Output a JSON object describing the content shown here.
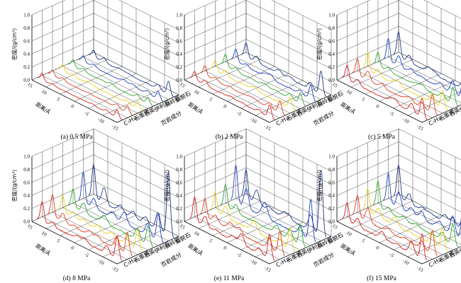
{
  "chart_data": {
    "type": "line",
    "ylabel": "密度/(g/cm³)",
    "xlabel": "距离/Å",
    "zlabel": "页岩成分",
    "ylim": [
      0,
      1.0
    ],
    "y_ticks": [
      "0.0",
      "0.2",
      "0.4",
      "0.6",
      "0.8",
      "1.0"
    ],
    "x_ticks": [
      "15",
      "10",
      "5",
      "0",
      "-5",
      "-10",
      "-15"
    ],
    "components": [
      "C₇H₁₆",
      "石墨烯",
      "石英",
      "伊利石",
      "高岭石",
      "蒙脱石"
    ],
    "series_colors": [
      "#d62020",
      "#e04020",
      "#e8d420",
      "#2ea82e",
      "#2040c0",
      "#203888"
    ],
    "panels": [
      {
        "caption": "(a) 0.5 MPa",
        "peak_scale": 0.12
      },
      {
        "caption": "(b) 2 MPa",
        "peak_scale": 0.3
      },
      {
        "caption": "(c) 5 MPa",
        "peak_scale": 0.55
      },
      {
        "caption": "(d) 8 MPa",
        "peak_scale": 0.7
      },
      {
        "caption": "(e) 11 MPa",
        "peak_scale": 0.8
      },
      {
        "caption": "(f) 15 MPa",
        "peak_scale": 0.85
      }
    ]
  }
}
